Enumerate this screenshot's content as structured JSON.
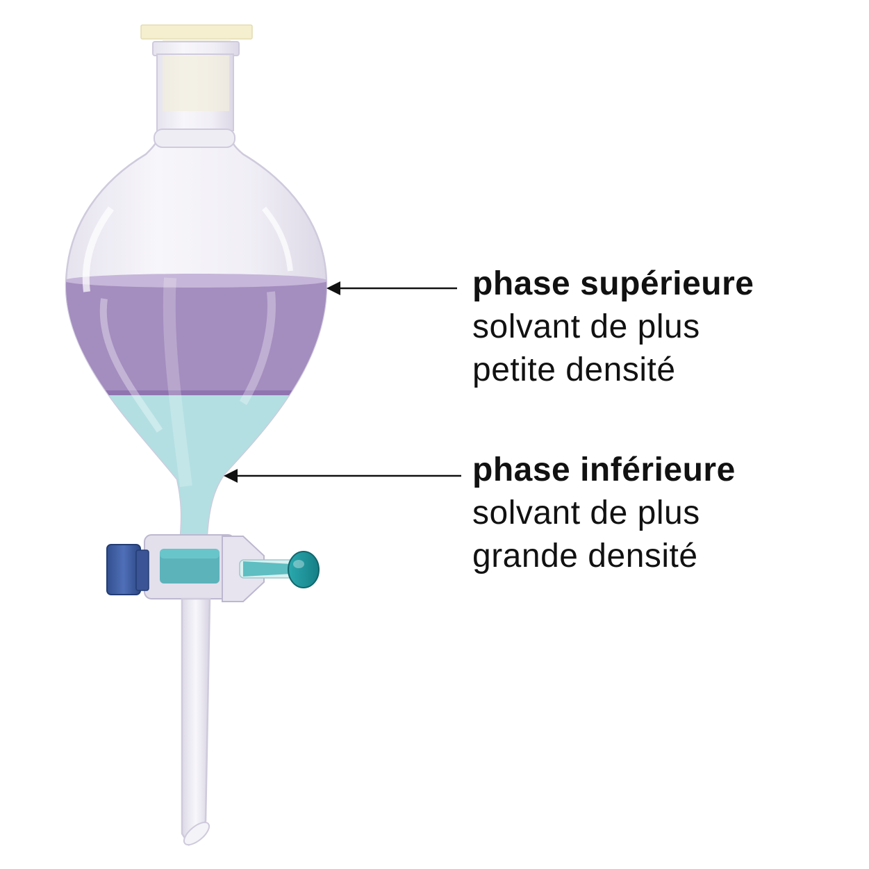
{
  "labels": {
    "upper": {
      "title": "phase supérieure",
      "line1": "solvant de plus",
      "line2": "petite densité"
    },
    "lower": {
      "title": "phase inférieure",
      "line1": "solvant de plus",
      "line2": "grande densité"
    }
  },
  "colors": {
    "upper_phase": "#a48dbf",
    "lower_phase": "#b3dfe2",
    "stopper": "#f5efcf",
    "stopcock_knob": "#3d5aa0",
    "stopcock_key": "#1f9aa0",
    "arrow": "#111111"
  }
}
